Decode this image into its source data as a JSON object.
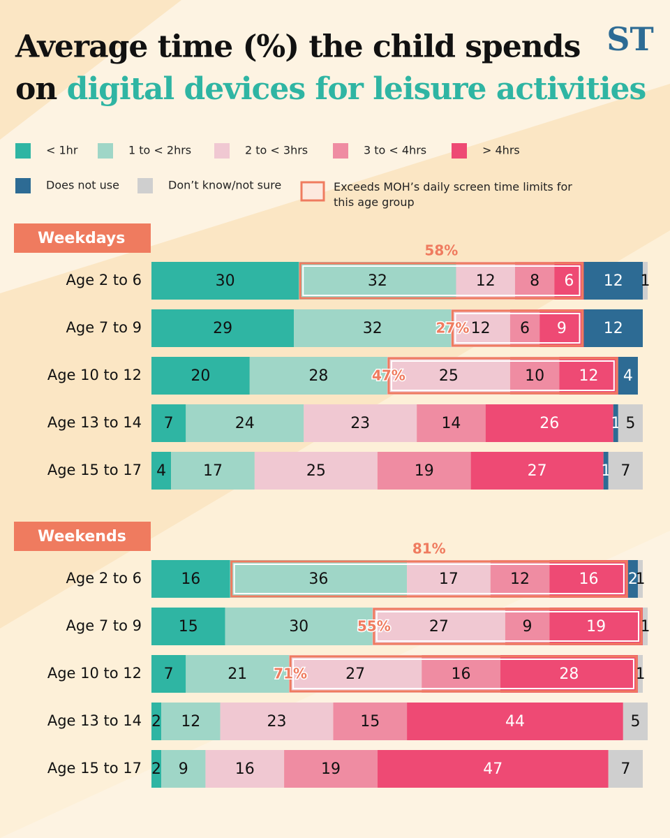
{
  "header": {
    "title_line1": "Average time (%) the child spends",
    "title_line2_prefix": "on",
    "title_line2_highlight": "digital devices for leisure activities",
    "logo": "ST"
  },
  "highlight_legend": "Exceeds MOH’s daily screen time limits for this age group",
  "chart_data": [
    {
      "type": "stacked-bar",
      "title": "Weekdays",
      "categories": [
        "Age 2 to 6",
        "Age 7 to 9",
        "Age 10 to 12",
        "Age 13 to 14",
        "Age 15 to 17"
      ],
      "series": [
        {
          "name": "< 1hr",
          "color": "#2fb5a3",
          "values": [
            30,
            29,
            20,
            7,
            4
          ]
        },
        {
          "name": "1 to < 2hrs",
          "color": "#9fd6c7",
          "values": [
            32,
            32,
            28,
            24,
            17
          ]
        },
        {
          "name": "2 to < 3hrs",
          "color": "#f0c8d2",
          "values": [
            12,
            12,
            25,
            23,
            25
          ]
        },
        {
          "name": "3 to < 4hrs",
          "color": "#ef8ca2",
          "values": [
            8,
            6,
            10,
            14,
            19
          ]
        },
        {
          "name": "> 4hrs",
          "color": "#ee4a74",
          "values": [
            6,
            9,
            12,
            26,
            27
          ]
        },
        {
          "name": "Does not use",
          "color": "#2d6b94",
          "values": [
            12,
            12,
            4,
            1,
            1
          ]
        },
        {
          "name": "Don’t know/not sure",
          "color": "#cfcfcf",
          "values": [
            1,
            null,
            null,
            5,
            7
          ]
        }
      ],
      "highlights": [
        {
          "value": 58,
          "label": "58%"
        },
        {
          "value": 27,
          "label": "27%"
        },
        {
          "value": 47,
          "label": "47%"
        },
        null,
        null
      ],
      "highlight_from_series": [
        1,
        2,
        2,
        null,
        null
      ],
      "highlight_color": "#ef7b5f"
    },
    {
      "type": "stacked-bar",
      "title": "Weekends",
      "categories": [
        "Age 2 to 6",
        "Age 7 to 9",
        "Age 10 to 12",
        "Age 13 to 14",
        "Age 15 to 17"
      ],
      "series": [
        {
          "name": "< 1hr",
          "color": "#2fb5a3",
          "values": [
            16,
            15,
            7,
            2,
            2
          ]
        },
        {
          "name": "1 to < 2hrs",
          "color": "#9fd6c7",
          "values": [
            36,
            30,
            21,
            12,
            9
          ]
        },
        {
          "name": "2 to < 3hrs",
          "color": "#f0c8d2",
          "values": [
            17,
            27,
            27,
            23,
            16
          ]
        },
        {
          "name": "3 to < 4hrs",
          "color": "#ef8ca2",
          "values": [
            12,
            9,
            16,
            15,
            19
          ]
        },
        {
          "name": "> 4hrs",
          "color": "#ee4a74",
          "values": [
            16,
            19,
            28,
            44,
            47
          ]
        },
        {
          "name": "Does not use",
          "color": "#2d6b94",
          "values": [
            2,
            null,
            null,
            null,
            null
          ]
        },
        {
          "name": "Don’t know/not sure",
          "color": "#cfcfcf",
          "values": [
            1,
            1,
            1,
            5,
            7
          ]
        }
      ],
      "highlights": [
        {
          "value": 81,
          "label": "81%"
        },
        {
          "value": 55,
          "label": "55%"
        },
        {
          "value": 71,
          "label": "71%"
        },
        null,
        null
      ],
      "highlight_from_series": [
        1,
        2,
        2,
        null,
        null
      ],
      "highlight_color": "#ef7b5f"
    }
  ]
}
